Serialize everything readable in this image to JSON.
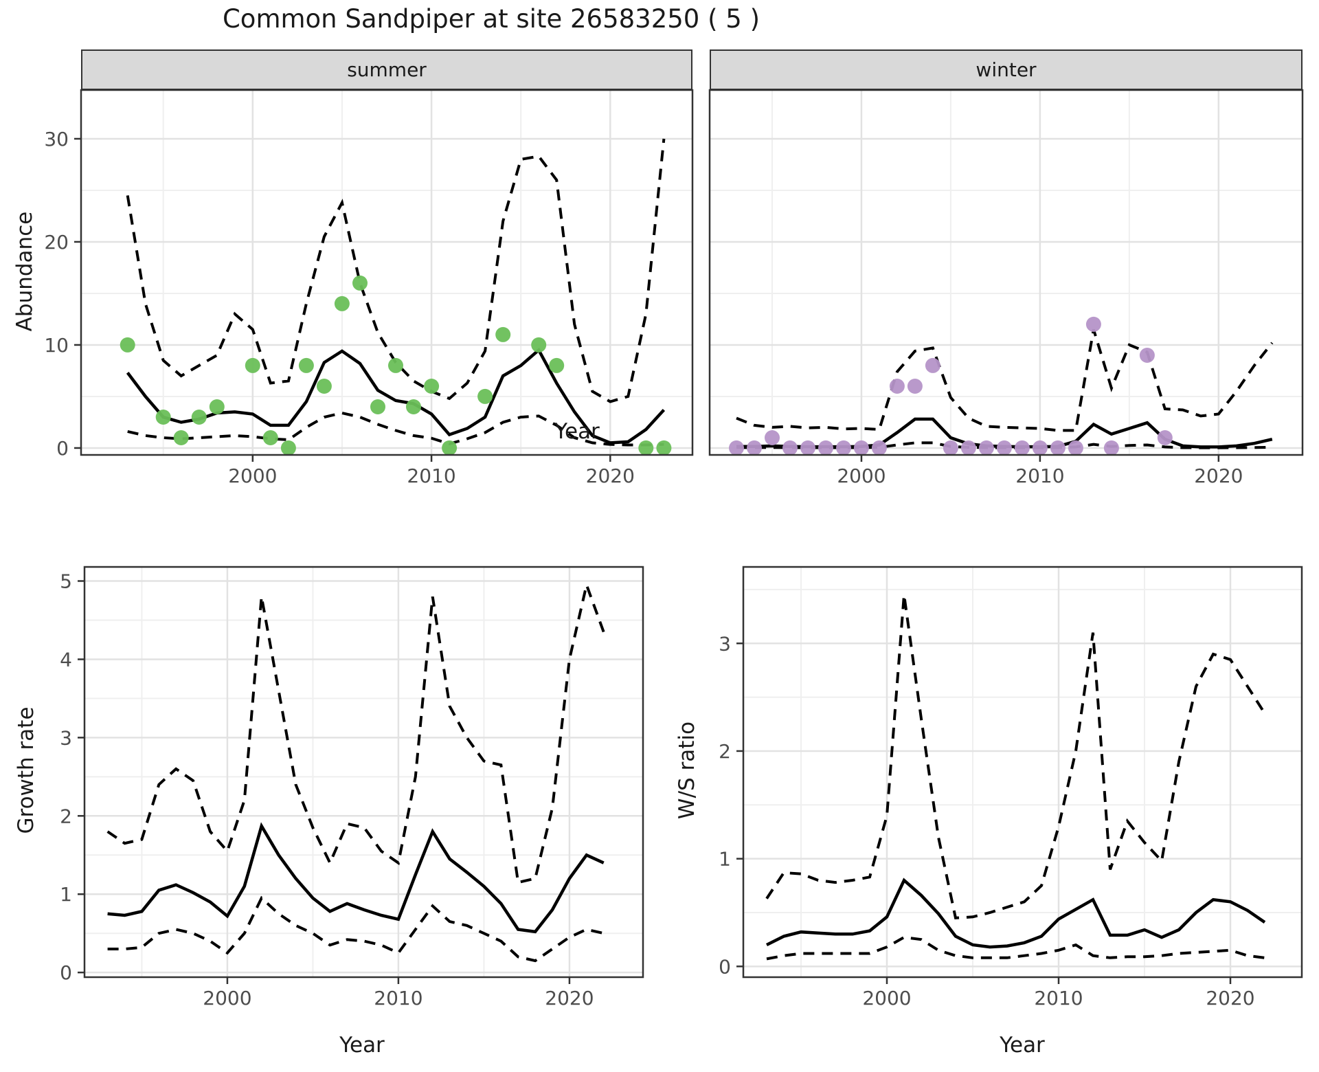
{
  "title": "Common Sandpiper at site 26583250 ( 5 )",
  "facets": [
    {
      "label": "summer"
    },
    {
      "label": "winter"
    }
  ],
  "axis_titles": {
    "abundance": "Abundance",
    "year_top": "Year",
    "growth_rate": "Growth rate",
    "year_bottom_left": "Year",
    "ws_ratio": "W/S ratio",
    "year_bottom_right": "Year"
  },
  "colors": {
    "summer_point": "#6abf59",
    "winter_point": "#b593c8",
    "line": "#000000",
    "grid_major": "#e2e2e2",
    "grid_minor": "#efefef",
    "strip_bg": "#d9d9d9",
    "panel_border": "#333333",
    "tick_label": "#4d4d4d"
  },
  "chart_data": [
    {
      "type": "line",
      "facet": "summer",
      "xlabel": "Year",
      "ylabel": "Abundance",
      "xlim": [
        1990.4,
        2024.6
      ],
      "ylim": [
        -0.67,
        34.73
      ],
      "x_ticks": [
        2000,
        2010,
        2020
      ],
      "x_minor": [
        1995,
        2005,
        2015
      ],
      "y_ticks": [
        0,
        10,
        20,
        30
      ],
      "y_minor": [
        5,
        15,
        25
      ],
      "grid": true,
      "legend": "none",
      "x": [
        1993,
        1994,
        1995,
        1996,
        1997,
        1998,
        1999,
        2000,
        2001,
        2002,
        2003,
        2004,
        2005,
        2006,
        2007,
        2008,
        2009,
        2010,
        2011,
        2012,
        2013,
        2014,
        2015,
        2016,
        2017,
        2018,
        2019,
        2020,
        2021,
        2022,
        2023
      ],
      "series": [
        {
          "name": "model fit",
          "style": "solid",
          "values": [
            7.3,
            5.0,
            3.0,
            2.5,
            2.8,
            3.4,
            3.5,
            3.3,
            2.2,
            2.2,
            4.5,
            8.3,
            9.4,
            8.2,
            5.6,
            4.6,
            4.3,
            3.3,
            1.3,
            1.9,
            3.0,
            7.0,
            8.0,
            9.5,
            6.3,
            3.5,
            1.2,
            0.5,
            0.6,
            1.8,
            3.7
          ]
        },
        {
          "name": "upper CI",
          "style": "dashed",
          "values": [
            24.5,
            14.0,
            8.5,
            7.0,
            8.0,
            9.0,
            13.0,
            11.5,
            6.3,
            6.5,
            14.0,
            20.5,
            23.8,
            16.0,
            11.2,
            8.3,
            6.5,
            5.5,
            4.8,
            6.3,
            9.4,
            22.0,
            28.0,
            28.3,
            26.0,
            12.0,
            5.5,
            4.5,
            5.0,
            13.0,
            30.0
          ]
        },
        {
          "name": "lower CI",
          "style": "dashed",
          "values": [
            1.6,
            1.2,
            1.0,
            0.9,
            1.0,
            1.1,
            1.2,
            1.1,
            0.9,
            0.8,
            2.0,
            3.0,
            3.4,
            3.0,
            2.3,
            1.7,
            1.2,
            0.95,
            0.4,
            0.9,
            1.5,
            2.5,
            3.0,
            3.1,
            2.2,
            1.0,
            0.5,
            0.35,
            0.3,
            0.3,
            0.35
          ]
        }
      ],
      "points": {
        "name": "observed count",
        "color_key": "summer_point",
        "values": [
          10,
          null,
          3,
          1,
          3,
          4,
          null,
          8,
          1,
          0,
          8,
          6,
          14,
          16,
          4,
          8,
          4,
          6,
          0,
          null,
          5,
          11,
          null,
          10,
          8,
          null,
          null,
          null,
          null,
          0,
          0
        ]
      }
    },
    {
      "type": "line",
      "facet": "winter",
      "xlabel": "Year",
      "ylabel": "Abundance",
      "xlim": [
        1991.5,
        2024.7
      ],
      "ylim": [
        -0.67,
        34.73
      ],
      "x_ticks": [
        2000,
        2010,
        2020
      ],
      "x_minor": [
        1995,
        2005,
        2015
      ],
      "y_ticks": [
        0,
        10,
        20,
        30
      ],
      "y_minor": [
        5,
        15,
        25
      ],
      "grid": true,
      "legend": "none",
      "x": [
        1993,
        1994,
        1995,
        1996,
        1997,
        1998,
        1999,
        2000,
        2001,
        2002,
        2003,
        2004,
        2005,
        2006,
        2007,
        2008,
        2009,
        2010,
        2011,
        2012,
        2013,
        2014,
        2015,
        2016,
        2017,
        2018,
        2019,
        2020,
        2021,
        2022,
        2023
      ],
      "series": [
        {
          "name": "model fit",
          "style": "solid",
          "values": [
            0.15,
            0.15,
            0.2,
            0.15,
            0.12,
            0.12,
            0.12,
            0.15,
            0.3,
            1.5,
            2.8,
            2.8,
            1.0,
            0.4,
            0.2,
            0.15,
            0.12,
            0.12,
            0.15,
            0.65,
            2.3,
            1.35,
            1.9,
            2.45,
            0.85,
            0.2,
            0.1,
            0.1,
            0.2,
            0.45,
            0.85
          ]
        },
        {
          "name": "upper CI",
          "style": "dashed",
          "values": [
            2.9,
            2.2,
            2.0,
            2.1,
            1.95,
            2.0,
            1.85,
            1.9,
            1.8,
            7.4,
            9.4,
            9.7,
            4.9,
            2.9,
            2.1,
            2.0,
            1.95,
            1.9,
            1.7,
            1.7,
            11.5,
            5.8,
            10.0,
            9.3,
            3.8,
            3.7,
            3.1,
            3.3,
            5.5,
            8.0,
            10.2
          ]
        },
        {
          "name": "lower CI",
          "style": "dashed",
          "values": [
            0.05,
            0.04,
            0.05,
            0.04,
            0.03,
            0.03,
            0.03,
            0.04,
            0.06,
            0.3,
            0.5,
            0.5,
            0.15,
            0.06,
            0.04,
            0.03,
            0.03,
            0.03,
            0.03,
            0.1,
            0.35,
            0.15,
            0.25,
            0.3,
            0.1,
            0.03,
            0.02,
            0.02,
            0.03,
            0.05,
            0.08
          ]
        }
      ],
      "points": {
        "name": "observed count",
        "color_key": "winter_point",
        "values": [
          0,
          0,
          1,
          0,
          0,
          0,
          0,
          0,
          0,
          6,
          6,
          8,
          0,
          0,
          0,
          0,
          0,
          0,
          0,
          0,
          12,
          0,
          null,
          9,
          1,
          null,
          null,
          null,
          null,
          null,
          null
        ]
      }
    },
    {
      "type": "line",
      "facet": null,
      "xlabel": "Year",
      "ylabel": "Growth rate",
      "xlim": [
        1991.65,
        2024.3
      ],
      "ylim": [
        -0.06,
        5.18
      ],
      "x_ticks": [
        2000,
        2010,
        2020
      ],
      "x_minor": [
        1995,
        2005,
        2015
      ],
      "y_ticks": [
        0,
        1,
        2,
        3,
        4,
        5
      ],
      "y_minor": [
        0.5,
        1.5,
        2.5,
        3.5,
        4.5
      ],
      "grid": true,
      "legend": "none",
      "x": [
        1993,
        1994,
        1995,
        1996,
        1997,
        1998,
        1999,
        2000,
        2001,
        2002,
        2003,
        2004,
        2005,
        2006,
        2007,
        2008,
        2009,
        2010,
        2011,
        2012,
        2013,
        2014,
        2015,
        2016,
        2017,
        2018,
        2019,
        2020,
        2021,
        2022
      ],
      "series": [
        {
          "name": "model fit",
          "style": "solid",
          "values": [
            0.75,
            0.73,
            0.78,
            1.05,
            1.12,
            1.02,
            0.9,
            0.72,
            1.1,
            1.87,
            1.5,
            1.2,
            0.95,
            0.78,
            0.88,
            0.8,
            0.73,
            0.68,
            1.25,
            1.8,
            1.45,
            1.28,
            1.1,
            0.88,
            0.55,
            0.52,
            0.8,
            1.2,
            1.5,
            1.4
          ]
        },
        {
          "name": "upper CI",
          "style": "dashed",
          "values": [
            1.8,
            1.65,
            1.7,
            2.4,
            2.6,
            2.45,
            1.8,
            1.55,
            2.2,
            4.8,
            3.6,
            2.4,
            1.85,
            1.4,
            1.9,
            1.85,
            1.55,
            1.4,
            2.5,
            4.8,
            3.4,
            3.0,
            2.7,
            2.65,
            1.15,
            1.2,
            2.1,
            4.0,
            4.95,
            4.35
          ]
        },
        {
          "name": "lower CI",
          "style": "dashed",
          "values": [
            0.3,
            0.3,
            0.32,
            0.5,
            0.55,
            0.5,
            0.4,
            0.25,
            0.5,
            0.95,
            0.75,
            0.6,
            0.5,
            0.35,
            0.42,
            0.4,
            0.35,
            0.25,
            0.55,
            0.85,
            0.65,
            0.6,
            0.5,
            0.4,
            0.2,
            0.15,
            0.3,
            0.45,
            0.55,
            0.5
          ]
        }
      ],
      "points": null
    },
    {
      "type": "line",
      "facet": null,
      "xlabel": "Year",
      "ylabel": "W/S ratio",
      "xlim": [
        1991.64,
        2024.16
      ],
      "ylim": [
        -0.1,
        3.71
      ],
      "x_ticks": [
        2000,
        2010,
        2020
      ],
      "x_minor": [
        1995,
        2005,
        2015
      ],
      "y_ticks": [
        0,
        1,
        2,
        3
      ],
      "y_minor": [
        0.5,
        1.5,
        2.5,
        3.5
      ],
      "grid": true,
      "legend": "none",
      "x": [
        1993,
        1994,
        1995,
        1996,
        1997,
        1998,
        1999,
        2000,
        2001,
        2002,
        2003,
        2004,
        2005,
        2006,
        2007,
        2008,
        2009,
        2010,
        2011,
        2012,
        2013,
        2014,
        2015,
        2016,
        2017,
        2018,
        2019,
        2020,
        2021,
        2022
      ],
      "series": [
        {
          "name": "model fit",
          "style": "solid",
          "values": [
            0.2,
            0.28,
            0.32,
            0.31,
            0.3,
            0.3,
            0.33,
            0.46,
            0.8,
            0.66,
            0.49,
            0.28,
            0.2,
            0.18,
            0.19,
            0.22,
            0.28,
            0.44,
            0.53,
            0.62,
            0.29,
            0.29,
            0.34,
            0.27,
            0.34,
            0.5,
            0.62,
            0.6,
            0.52,
            0.41
          ]
        },
        {
          "name": "upper CI",
          "style": "dashed",
          "values": [
            0.63,
            0.87,
            0.86,
            0.8,
            0.78,
            0.8,
            0.83,
            1.4,
            3.45,
            2.3,
            1.2,
            0.45,
            0.46,
            0.5,
            0.55,
            0.6,
            0.75,
            1.3,
            2.0,
            3.1,
            0.9,
            1.35,
            1.15,
            0.98,
            1.9,
            2.6,
            2.9,
            2.85,
            2.6,
            2.35
          ]
        },
        {
          "name": "lower CI",
          "style": "dashed",
          "values": [
            0.07,
            0.1,
            0.12,
            0.12,
            0.12,
            0.12,
            0.12,
            0.18,
            0.27,
            0.25,
            0.15,
            0.1,
            0.08,
            0.08,
            0.08,
            0.1,
            0.12,
            0.15,
            0.2,
            0.1,
            0.08,
            0.09,
            0.09,
            0.1,
            0.12,
            0.13,
            0.14,
            0.15,
            0.1,
            0.08
          ]
        }
      ],
      "points": null
    }
  ]
}
